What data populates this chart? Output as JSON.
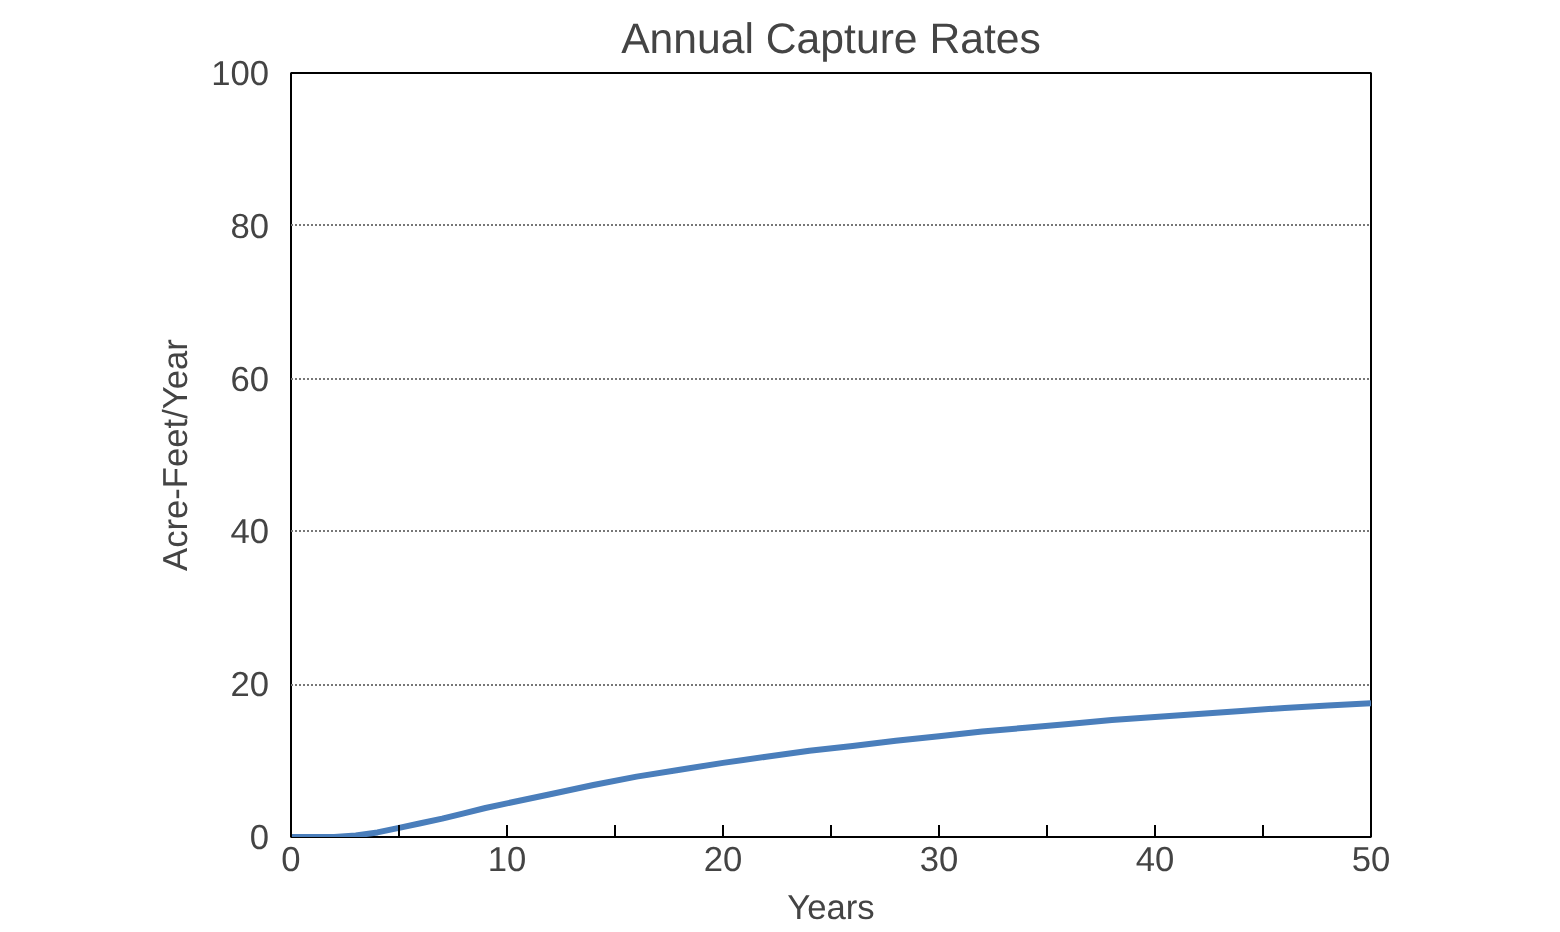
{
  "chart_data": {
    "type": "line",
    "title": "Annual Capture Rates",
    "xlabel": "Years",
    "ylabel": "Acre-Feet/Year",
    "x": [
      0,
      1,
      2,
      3,
      4,
      5,
      6,
      7,
      8,
      9,
      10,
      12,
      14,
      16,
      18,
      20,
      22,
      24,
      26,
      28,
      30,
      32,
      34,
      36,
      38,
      40,
      42,
      44,
      46,
      48,
      50
    ],
    "series": [
      {
        "color": "#4a7ebb",
        "values": [
          0,
          0,
          0,
          0.2,
          0.6,
          1.2,
          1.8,
          2.4,
          3.1,
          3.8,
          4.4,
          5.6,
          6.8,
          7.9,
          8.8,
          9.7,
          10.5,
          11.3,
          11.9,
          12.6,
          13.2,
          13.8,
          14.3,
          14.8,
          15.3,
          15.7,
          16.1,
          16.5,
          16.9,
          17.2,
          17.5
        ]
      }
    ],
    "xlim": [
      0,
      50
    ],
    "ylim": [
      0,
      100
    ],
    "xticks": [
      0,
      {
        "value": 5,
        "label": null
      },
      10,
      {
        "value": 15,
        "label": null
      },
      20,
      {
        "value": 25,
        "label": null
      },
      30,
      {
        "value": 35,
        "label": null
      },
      40,
      {
        "value": 45,
        "label": null
      },
      50
    ],
    "yticks": [
      0,
      20,
      40,
      60,
      80,
      100
    ],
    "grid": "y",
    "marker": "none",
    "line_style": "solid"
  }
}
